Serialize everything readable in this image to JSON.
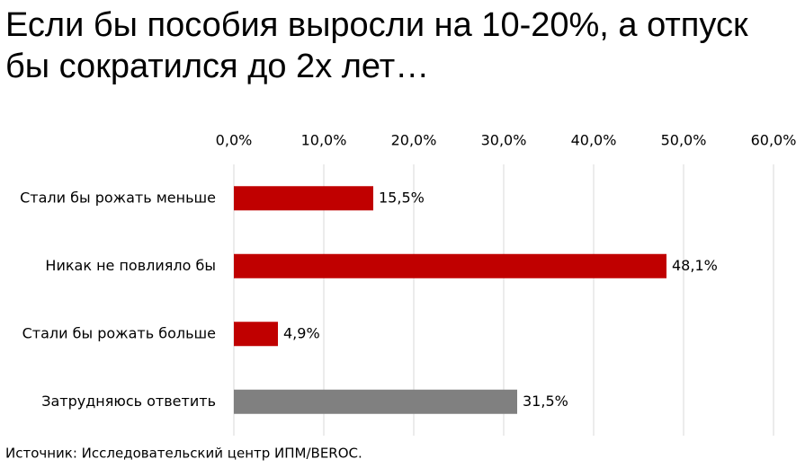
{
  "chart_data": {
    "type": "hbar",
    "title": [
      "Если бы пособия выросли на 10-20%, а отпуск",
      "бы сократился до 2х лет…"
    ],
    "categories": [
      "Стали бы рожать меньше",
      "Никак не повлияло бы",
      "Стали бы рожать больше",
      "Затрудняюсь ответить"
    ],
    "values": [
      15.5,
      48.1,
      4.9,
      31.5
    ],
    "value_labels": [
      "15,5%",
      "48,1%",
      "4,9%",
      "31,5%"
    ],
    "colors": [
      "#c00000",
      "#c00000",
      "#c00000",
      "#808080"
    ],
    "xlim": [
      0,
      60
    ],
    "xticks": [
      {
        "value": 0,
        "label": "0,0%"
      },
      {
        "value": 10,
        "label": "10,0%"
      },
      {
        "value": 20,
        "label": "20,0%"
      },
      {
        "value": 30,
        "label": "30,0%"
      },
      {
        "value": 40,
        "label": "40,0%"
      },
      {
        "value": 50,
        "label": "50,0%"
      },
      {
        "value": 60,
        "label": "60,0%"
      }
    ],
    "grid": true,
    "source": "Источник: Исследовательский центр ИПМ/BEROC."
  }
}
